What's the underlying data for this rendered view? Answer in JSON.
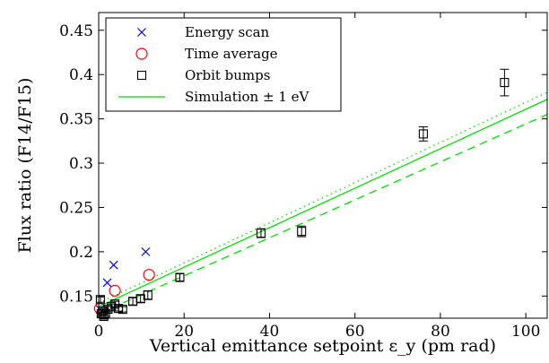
{
  "chart_data": {
    "type": "scatter",
    "xlabel": "Vertical emittance setpoint ε_y (pm rad)",
    "ylabel": "Flux ratio (F14/F15)",
    "xlim": [
      0,
      105
    ],
    "ylim": [
      0.125,
      0.47
    ],
    "x_ticks": [
      0,
      20,
      40,
      60,
      80,
      100
    ],
    "y_ticks": [
      0.15,
      0.2,
      0.25,
      0.3,
      0.35,
      0.4,
      0.45
    ],
    "x_tick_labels": [
      "0",
      "20",
      "40",
      "60",
      "80",
      "100"
    ],
    "y_tick_labels": [
      "0.15",
      "0.2",
      "0.25",
      "0.3",
      "0.35",
      "0.4",
      "0.45"
    ],
    "grid": false,
    "legend_position": "top-left",
    "series": [
      {
        "name": "Energy scan",
        "marker": "x",
        "color": "#0000ff",
        "x": [
          0.3,
          2.0,
          3.5,
          11.0
        ],
        "y": [
          0.135,
          0.165,
          0.185,
          0.2
        ]
      },
      {
        "name": "Time average",
        "marker": "circle",
        "color": "#ff0000",
        "x": [
          0.3,
          3.8,
          11.8
        ],
        "y": [
          0.136,
          0.156,
          0.174
        ]
      },
      {
        "name": "Orbit bumps",
        "marker": "square",
        "color": "#000000",
        "x": [
          0.4,
          0.6,
          0.9,
          1.2,
          1.6,
          2.2,
          3.0,
          3.8,
          4.6,
          5.6,
          8.0,
          9.8,
          11.5,
          19.0,
          38.0,
          47.5,
          76.0,
          95.0
        ],
        "y": [
          0.146,
          0.13,
          0.133,
          0.127,
          0.13,
          0.135,
          0.138,
          0.141,
          0.136,
          0.135,
          0.144,
          0.147,
          0.151,
          0.171,
          0.221,
          0.223,
          0.333,
          0.391
        ],
        "yerr": [
          0.003,
          0.003,
          0.003,
          0.003,
          0.003,
          0.003,
          0.003,
          0.003,
          0.003,
          0.003,
          0.004,
          0.004,
          0.005,
          0.004,
          0.005,
          0.006,
          0.008,
          0.015
        ]
      },
      {
        "name": "Simulation ± 1 eV",
        "type": "line",
        "color": "#00dd00",
        "line_style": "solid",
        "x": [
          0,
          105
        ],
        "y": [
          0.138,
          0.372
        ]
      },
      {
        "name": "",
        "type": "line",
        "color": "#00dd00",
        "line_style": "dashed",
        "x": [
          0,
          105
        ],
        "y": [
          0.13,
          0.355
        ]
      },
      {
        "name": "",
        "type": "line",
        "color": "#00dd00",
        "line_style": "dotted",
        "x": [
          0,
          105
        ],
        "y": [
          0.142,
          0.38
        ]
      }
    ]
  }
}
